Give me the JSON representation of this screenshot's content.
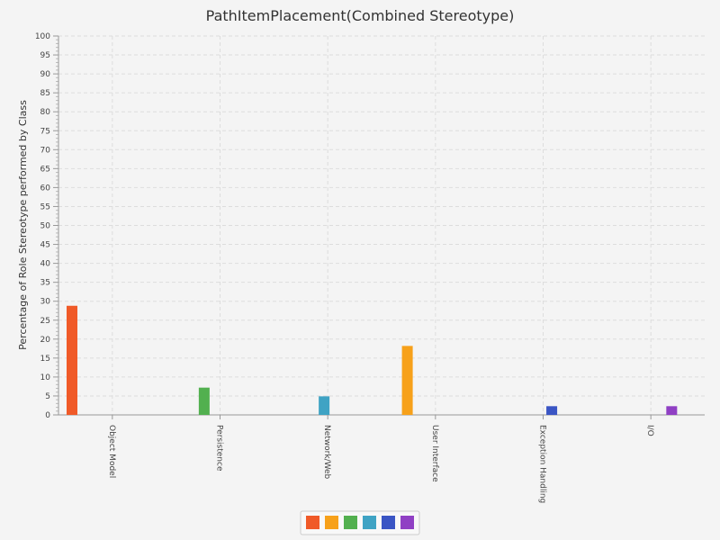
{
  "chart_data": {
    "type": "bar",
    "title": "PathItemPlacement(Combined Stereotype)",
    "xlabel": "",
    "ylabel": "Percentage of Role Stereotype performed by Class",
    "ylim": [
      0,
      100
    ],
    "yticks": [
      0,
      5,
      10,
      15,
      20,
      25,
      30,
      35,
      40,
      45,
      50,
      55,
      60,
      65,
      70,
      75,
      80,
      85,
      90,
      95,
      100
    ],
    "categories": [
      "Object Model",
      "Persistence",
      "Network/Web",
      "User Interface",
      "Exception Handling",
      "I/O"
    ],
    "series": [
      {
        "values": [
          28.8,
          0,
          0,
          0,
          0,
          0
        ],
        "color": "#f05a28"
      },
      {
        "values": [
          0,
          0,
          0,
          18.2,
          0,
          0
        ],
        "color": "#f7a11a"
      },
      {
        "values": [
          0,
          7.2,
          0,
          0,
          0,
          0
        ],
        "color": "#52b04f"
      },
      {
        "values": [
          0,
          0,
          4.9,
          0,
          0,
          0
        ],
        "color": "#3fa3c4"
      },
      {
        "values": [
          0,
          0,
          0,
          0,
          2.3,
          0
        ],
        "color": "#3a55c4"
      },
      {
        "values": [
          0,
          0,
          0,
          0,
          0,
          2.3
        ],
        "color": "#9040c4"
      }
    ],
    "grid": true,
    "legend_position": "bottom"
  }
}
